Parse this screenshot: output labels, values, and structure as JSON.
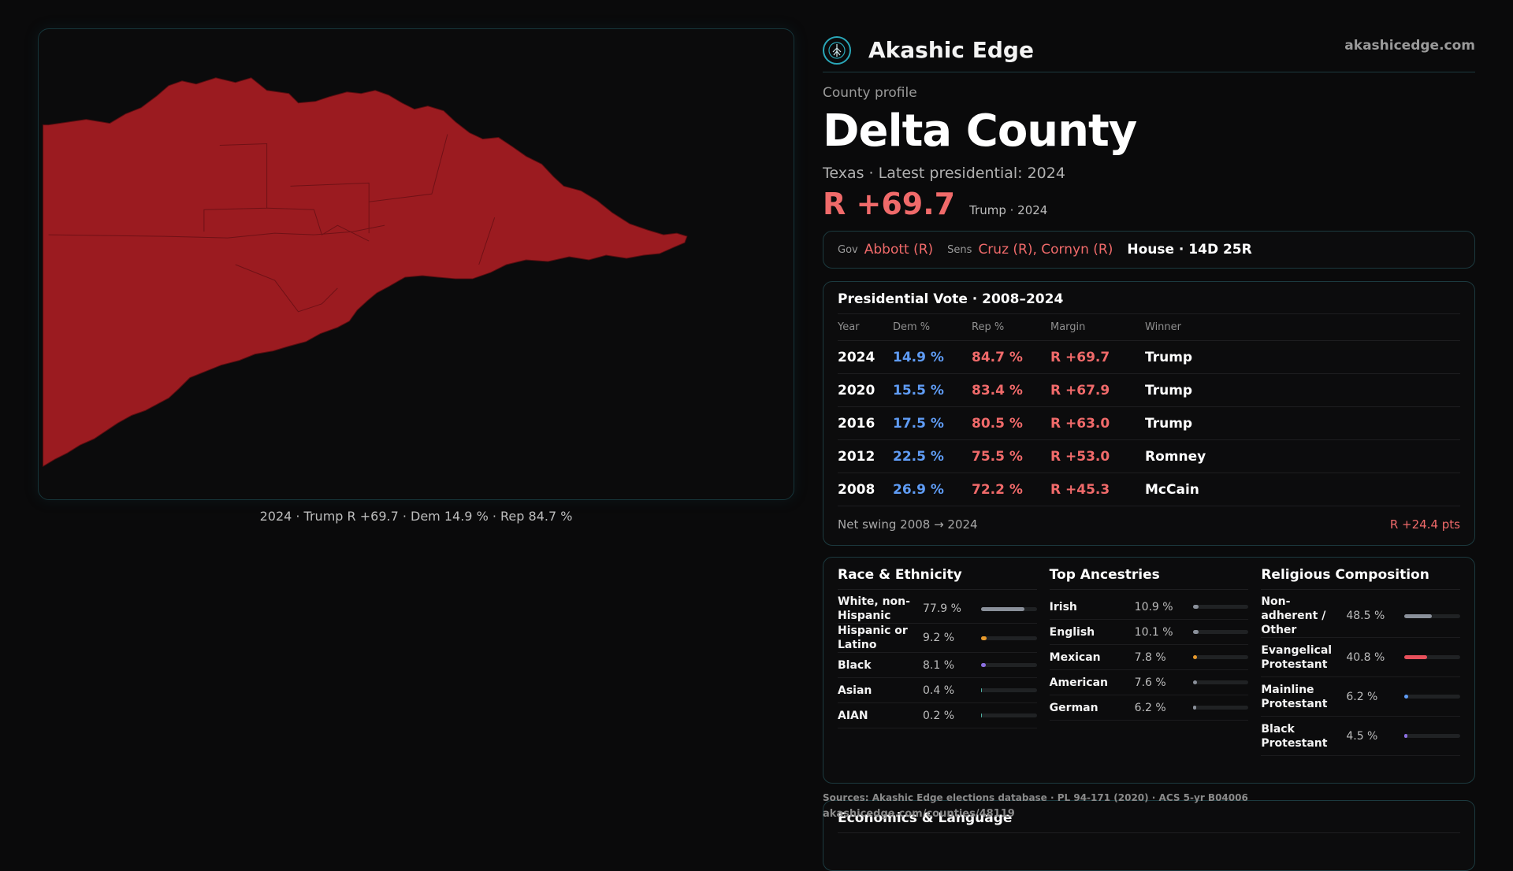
{
  "map": {
    "caption": "2024 · Trump R +69.7 · Dem 14.9 % · Rep 84.7 %",
    "fill_color": "#9b1b20"
  },
  "header": {
    "brand": "Akashic Edge",
    "url": "akashicedge.com",
    "logo_icon": "akashic-tree-icon"
  },
  "county": {
    "section_label": "County profile",
    "name": "Delta County",
    "subtitle": "Texas · Latest presidential: 2024",
    "margin": "R +69.7",
    "margin_note": "Trump · 2024"
  },
  "officials": {
    "gov_label": "Gov",
    "gov": "Abbott (R)",
    "sens_label": "Sens",
    "sens": "Cruz (R), Cornyn (R)",
    "house": "House · 14D 25R"
  },
  "presidential": {
    "title": "Presidential Vote · 2008–2024",
    "headers": [
      "Year",
      "Dem %",
      "Rep %",
      "Margin",
      "Winner"
    ],
    "rows": [
      {
        "year": "2024",
        "dem": "14.9 %",
        "rep": "84.7 %",
        "margin": "R +69.7",
        "winner": "Trump"
      },
      {
        "year": "2020",
        "dem": "15.5 %",
        "rep": "83.4 %",
        "margin": "R +67.9",
        "winner": "Trump"
      },
      {
        "year": "2016",
        "dem": "17.5 %",
        "rep": "80.5 %",
        "margin": "R +63.0",
        "winner": "Trump"
      },
      {
        "year": "2012",
        "dem": "22.5 %",
        "rep": "75.5 %",
        "margin": "R +53.0",
        "winner": "Romney"
      },
      {
        "year": "2008",
        "dem": "26.9 %",
        "rep": "72.2 %",
        "margin": "R +45.3",
        "winner": "McCain"
      }
    ],
    "swing_label": "Net swing 2008 → 2024",
    "swing_value": "R +24.4 pts"
  },
  "race": {
    "title": "Race & Ethnicity",
    "items": [
      {
        "name": "White, non-Hispanic",
        "value": "77.9 %",
        "pct": 77.9,
        "color": "#8a909a"
      },
      {
        "name": "Hispanic or Latino",
        "value": "9.2 %",
        "pct": 9.2,
        "color": "#e89a2c"
      },
      {
        "name": "Black",
        "value": "8.1 %",
        "pct": 8.1,
        "color": "#8b6fe0"
      },
      {
        "name": "Asian",
        "value": "0.4 %",
        "pct": 0.4,
        "color": "#4fb3a5"
      },
      {
        "name": "AIAN",
        "value": "0.2 %",
        "pct": 0.2,
        "color": "#4fb3a5"
      }
    ]
  },
  "ancestry": {
    "title": "Top Ancestries",
    "items": [
      {
        "name": "Irish",
        "value": "10.9 %",
        "pct": 10.9,
        "color": "#8a909a"
      },
      {
        "name": "English",
        "value": "10.1 %",
        "pct": 10.1,
        "color": "#8a909a"
      },
      {
        "name": "Mexican",
        "value": "7.8 %",
        "pct": 7.8,
        "color": "#e89a2c"
      },
      {
        "name": "American",
        "value": "7.6 %",
        "pct": 7.6,
        "color": "#8a909a"
      },
      {
        "name": "German",
        "value": "6.2 %",
        "pct": 6.2,
        "color": "#8a909a"
      }
    ]
  },
  "religion": {
    "title": "Religious Composition",
    "items": [
      {
        "name": "Non-adherent / Other",
        "value": "48.5 %",
        "pct": 48.5,
        "color": "#8a909a"
      },
      {
        "name": "Evangelical Protestant",
        "value": "40.8 %",
        "pct": 40.8,
        "color": "#e8505b"
      },
      {
        "name": "Mainline Protestant",
        "value": "6.2 %",
        "pct": 6.2,
        "color": "#5f9cf5"
      },
      {
        "name": "Black Protestant",
        "value": "4.5 %",
        "pct": 4.5,
        "color": "#8b6fe0"
      }
    ]
  },
  "footer": {
    "sources": "Sources: Akashic Edge elections database · PL 94-171 (2020) · ACS 5-yr B04006",
    "url": "akashicedge.com/counties/48119",
    "econ_title": "Economics & Language"
  }
}
